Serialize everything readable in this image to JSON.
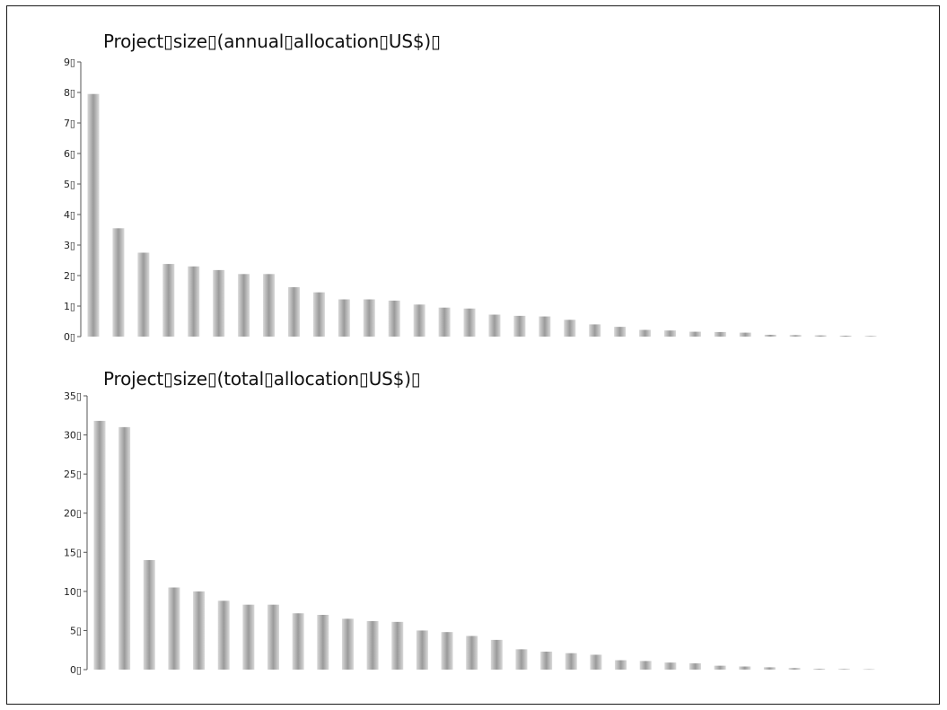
{
  "chart_data": [
    {
      "type": "bar",
      "title": "Project▯size▯(annual▯allocation▯US$)▯",
      "xlabel": "",
      "ylabel": "",
      "ylim": [
        0,
        9
      ],
      "y_ticks": [
        "0▯",
        "1▯",
        "2▯",
        "3▯",
        "4▯",
        "5▯",
        "6▯",
        "7▯",
        "8▯",
        "9▯"
      ],
      "grid": false,
      "bar_color": "#a9a9a9",
      "values": [
        7.95,
        3.55,
        2.75,
        2.38,
        2.3,
        2.18,
        2.05,
        2.05,
        1.62,
        1.45,
        1.22,
        1.22,
        1.18,
        1.05,
        0.95,
        0.92,
        0.72,
        0.68,
        0.66,
        0.55,
        0.4,
        0.32,
        0.22,
        0.2,
        0.16,
        0.15,
        0.13,
        0.06,
        0.05,
        0.04,
        0.03,
        0.02
      ]
    },
    {
      "type": "bar",
      "title": "Project▯size▯(total▯allocation▯US$)▯",
      "xlabel": "",
      "ylabel": "",
      "ylim": [
        0,
        35
      ],
      "y_ticks": [
        "0▯",
        "5▯",
        "10▯",
        "15▯",
        "20▯",
        "25▯",
        "30▯",
        "35▯"
      ],
      "grid": false,
      "bar_color": "#a9a9a9",
      "values": [
        31.8,
        31.0,
        14.0,
        10.5,
        10.0,
        8.8,
        8.3,
        8.3,
        7.2,
        7.0,
        6.5,
        6.2,
        6.1,
        5.0,
        4.8,
        4.3,
        3.8,
        2.6,
        2.3,
        2.1,
        1.9,
        1.2,
        1.1,
        0.9,
        0.8,
        0.5,
        0.4,
        0.3,
        0.2,
        0.1,
        0.08,
        0.05
      ]
    }
  ]
}
